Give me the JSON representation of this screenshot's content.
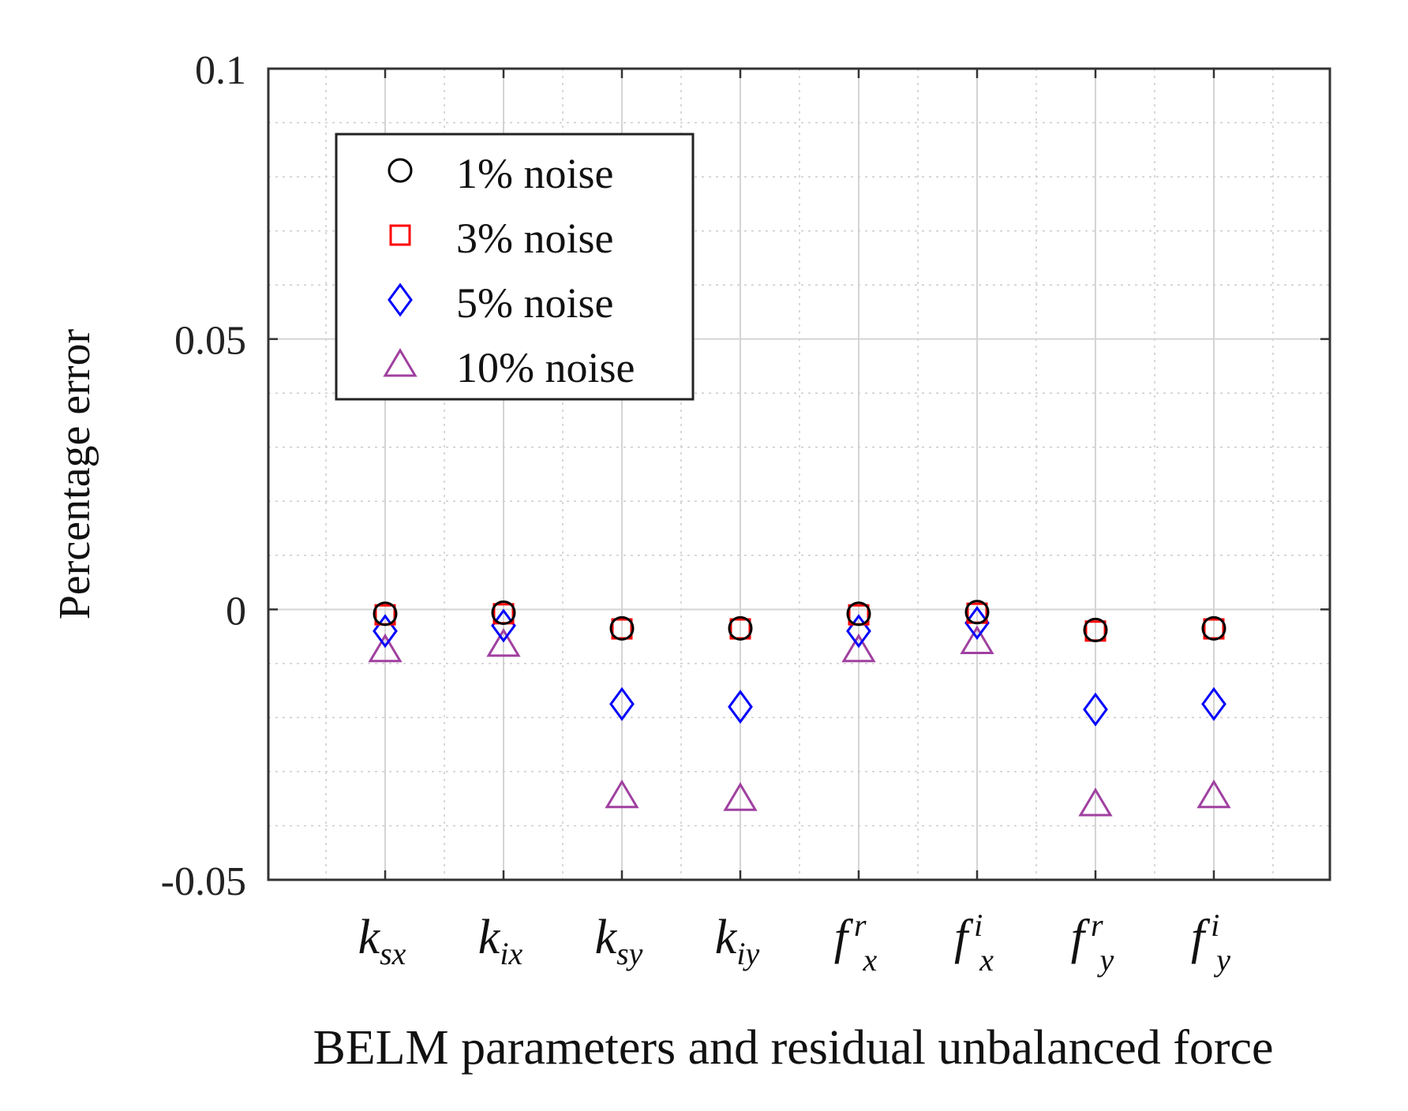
{
  "chart_data": {
    "type": "scatter",
    "title": "",
    "xlabel": "BELM parameters and residual unbalanced force",
    "ylabel": "Percentage error",
    "ylim": [
      -0.05,
      0.1
    ],
    "yticks": [
      -0.05,
      0,
      0.05,
      0.1
    ],
    "ytick_labels": [
      "-0.05",
      "0",
      "0.05",
      "0.1"
    ],
    "categories": [
      {
        "base": "k",
        "sub": "sx",
        "sup": ""
      },
      {
        "base": "k",
        "sub": "ix",
        "sup": ""
      },
      {
        "base": "k",
        "sub": "sy",
        "sup": ""
      },
      {
        "base": "k",
        "sub": "iy",
        "sup": ""
      },
      {
        "base": "f",
        "sub": "x",
        "sup": "r"
      },
      {
        "base": "f",
        "sub": "x",
        "sup": "i"
      },
      {
        "base": "f",
        "sub": "y",
        "sup": "r"
      },
      {
        "base": "f",
        "sub": "y",
        "sup": "i"
      }
    ],
    "grid": true,
    "legend_position": "top-left",
    "series": [
      {
        "name": "1% noise",
        "marker": "circle",
        "color": "#000000",
        "values": [
          -0.0008,
          -0.0006,
          -0.0035,
          -0.0035,
          -0.0008,
          -0.0005,
          -0.0038,
          -0.0035
        ]
      },
      {
        "name": "3% noise",
        "marker": "square",
        "color": "#ff0000",
        "values": [
          -0.001,
          -0.0008,
          -0.0036,
          -0.0036,
          -0.001,
          -0.0007,
          -0.004,
          -0.0036
        ]
      },
      {
        "name": "5% noise",
        "marker": "diamond",
        "color": "#0000ff",
        "values": [
          -0.004,
          -0.003,
          -0.0175,
          -0.018,
          -0.004,
          -0.0025,
          -0.0185,
          -0.0175
        ]
      },
      {
        "name": "10% noise",
        "marker": "triangle",
        "color": "#a040a0",
        "values": [
          -0.0075,
          -0.0065,
          -0.0345,
          -0.035,
          -0.0075,
          -0.006,
          -0.036,
          -0.0345
        ]
      }
    ]
  }
}
